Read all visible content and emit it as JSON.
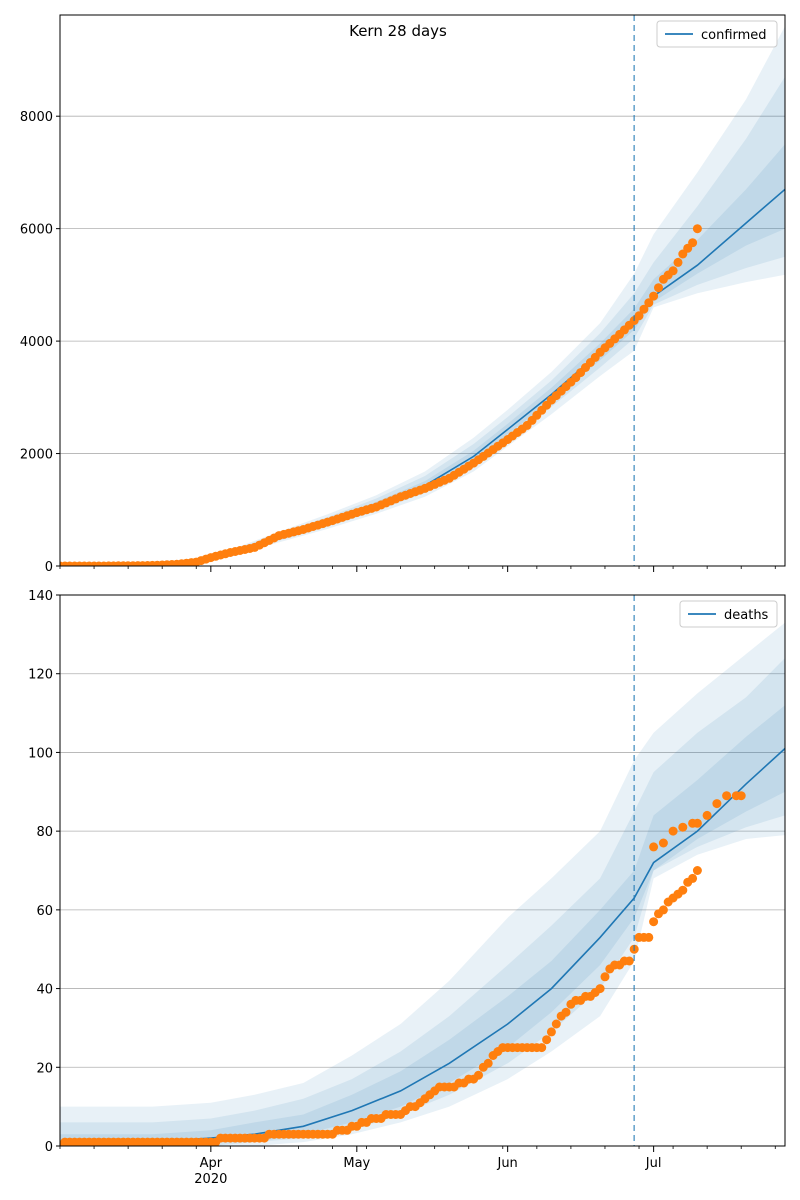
{
  "figure": {
    "title": "Kern 28 days"
  },
  "chart_data": [
    {
      "type": "line",
      "name": "confirmed",
      "title": "Kern 28 days",
      "x_start": "2020-03-01",
      "x_end": "2020-07-28",
      "forecast_start": "2020-06-27",
      "ylim": [
        0,
        9800
      ],
      "yticks": [
        0,
        2000,
        4000,
        6000,
        8000
      ],
      "grid": "y",
      "legend": {
        "position": "top-right",
        "entries": [
          "confirmed"
        ]
      },
      "x_ticks_major": [
        {
          "date": "2020-04-01",
          "label": "Apr",
          "sublabel": "2020"
        },
        {
          "date": "2020-05-01",
          "label": "May",
          "sublabel": ""
        },
        {
          "date": "2020-06-01",
          "label": "Jun",
          "sublabel": ""
        },
        {
          "date": "2020-07-01",
          "label": "Jul",
          "sublabel": ""
        }
      ],
      "x_ticks_labels_visible": false,
      "observed": {
        "dates": [
          "2020-03-01",
          "2020-03-10",
          "2020-03-15",
          "2020-03-20",
          "2020-03-25",
          "2020-03-29",
          "2020-04-01",
          "2020-04-05",
          "2020-04-10",
          "2020-04-15",
          "2020-04-20",
          "2020-04-25",
          "2020-05-01",
          "2020-05-05",
          "2020-05-10",
          "2020-05-15",
          "2020-05-20",
          "2020-05-25",
          "2020-06-01",
          "2020-06-05",
          "2020-06-10",
          "2020-06-15",
          "2020-06-20",
          "2020-06-25",
          "2020-06-28",
          "2020-07-01",
          "2020-07-03",
          "2020-07-05",
          "2020-07-07",
          "2020-07-09",
          "2020-07-10"
        ],
        "values": [
          0,
          0,
          5,
          10,
          30,
          70,
          150,
          240,
          330,
          540,
          650,
          780,
          950,
          1050,
          1230,
          1380,
          1560,
          1830,
          2250,
          2500,
          2950,
          3350,
          3800,
          4200,
          4450,
          4800,
          5100,
          5250,
          5550,
          5750,
          6000
        ]
      },
      "fit": {
        "dates": [
          "2020-03-01",
          "2020-03-20",
          "2020-03-29",
          "2020-04-05",
          "2020-04-15",
          "2020-04-25",
          "2020-05-05",
          "2020-05-15",
          "2020-05-25",
          "2020-06-01",
          "2020-06-10",
          "2020-06-20",
          "2020-06-27",
          "2020-07-01",
          "2020-07-10",
          "2020-07-20",
          "2020-07-28"
        ],
        "values": [
          0,
          5,
          60,
          230,
          510,
          780,
          1080,
          1430,
          1950,
          2430,
          3050,
          3800,
          4380,
          4800,
          5350,
          6100,
          6700
        ]
      },
      "bands": [
        {
          "lower": [
            0,
            0,
            30,
            180,
            420,
            660,
            930,
            1230,
            1680,
            2130,
            2700,
            3380,
            3830,
            4600,
            4850,
            5050,
            5180
          ],
          "upper": [
            10,
            20,
            100,
            290,
            610,
            920,
            1260,
            1680,
            2280,
            2780,
            3450,
            4320,
            5200,
            5900,
            7000,
            8300,
            9600
          ]
        },
        {
          "lower": [
            0,
            0,
            40,
            200,
            450,
            700,
            980,
            1300,
            1780,
            2240,
            2830,
            3530,
            4050,
            4650,
            5000,
            5300,
            5500
          ],
          "upper": [
            5,
            15,
            85,
            270,
            580,
            870,
            1200,
            1600,
            2170,
            2650,
            3300,
            4140,
            4850,
            5400,
            6400,
            7600,
            8700
          ]
        },
        {
          "lower": [
            0,
            2,
            50,
            215,
            480,
            740,
            1030,
            1370,
            1870,
            2340,
            2940,
            3660,
            4200,
            4700,
            5200,
            5700,
            6000
          ],
          "upper": [
            5,
            10,
            70,
            250,
            545,
            825,
            1140,
            1510,
            2050,
            2530,
            3170,
            3960,
            4580,
            5100,
            5800,
            6700,
            7500
          ]
        }
      ]
    },
    {
      "type": "line",
      "name": "deaths",
      "x_start": "2020-03-01",
      "x_end": "2020-07-28",
      "forecast_start": "2020-06-27",
      "ylim": [
        0,
        140
      ],
      "yticks": [
        0,
        20,
        40,
        60,
        80,
        100,
        120,
        140
      ],
      "grid": "y",
      "legend": {
        "position": "top-right",
        "entries": [
          "deaths"
        ]
      },
      "x_ticks_major": [
        {
          "date": "2020-04-01",
          "label": "Apr",
          "sublabel": "2020"
        },
        {
          "date": "2020-05-01",
          "label": "May",
          "sublabel": ""
        },
        {
          "date": "2020-06-01",
          "label": "Jun",
          "sublabel": ""
        },
        {
          "date": "2020-07-01",
          "label": "Jul",
          "sublabel": ""
        }
      ],
      "x_ticks_labels_visible": true,
      "observed": {
        "dates": [
          "2020-03-01",
          "2020-03-03",
          "2020-03-10",
          "2020-03-20",
          "2020-03-25",
          "2020-03-30",
          "2020-04-01",
          "2020-04-05",
          "2020-04-10",
          "2020-04-15",
          "2020-04-20",
          "2020-04-25",
          "2020-04-28",
          "2020-05-01",
          "2020-05-05",
          "2020-05-08",
          "2020-05-10",
          "2020-05-14",
          "2020-05-16",
          "2020-05-18",
          "2020-05-20",
          "2020-05-25",
          "2020-05-28",
          "2020-05-30",
          "2020-06-01",
          "2020-06-04",
          "2020-06-08",
          "2020-06-10",
          "2020-06-14",
          "2020-06-18",
          "2020-06-20",
          "2020-06-22",
          "2020-06-26",
          "2020-06-28",
          "2020-06-30",
          "2020-07-01",
          "2020-07-03",
          "2020-07-05",
          "2020-07-07",
          "2020-07-09",
          "2020-07-10"
        ],
        "values": [
          0,
          1,
          1,
          1,
          1,
          1,
          1,
          2,
          2,
          3,
          3,
          3,
          4,
          5,
          7,
          8,
          8,
          11,
          13,
          15,
          15,
          17,
          21,
          24,
          25,
          25,
          25,
          29,
          36,
          38,
          40,
          45,
          47,
          53,
          53,
          57,
          60,
          63,
          65,
          68,
          70
        ]
      },
      "observed_tail": {
        "dates": [
          "2020-07-01",
          "2020-07-03",
          "2020-07-05",
          "2020-07-07",
          "2020-07-09",
          "2020-07-10",
          "2020-07-12",
          "2020-07-14",
          "2020-07-16",
          "2020-07-18",
          "2020-07-19"
        ],
        "values": [
          76,
          77,
          80,
          81,
          82,
          82,
          84,
          87,
          89,
          89,
          89
        ]
      },
      "fit": {
        "dates": [
          "2020-03-01",
          "2020-03-20",
          "2020-04-01",
          "2020-04-10",
          "2020-04-20",
          "2020-04-30",
          "2020-05-10",
          "2020-05-20",
          "2020-06-01",
          "2020-06-10",
          "2020-06-20",
          "2020-06-27",
          "2020-07-01",
          "2020-07-10",
          "2020-07-20",
          "2020-07-28"
        ],
        "values": [
          1,
          1,
          2,
          3,
          5,
          9,
          14,
          21,
          31,
          40,
          53,
          63,
          72,
          80,
          92,
          101
        ]
      },
      "bands": [
        {
          "lower": [
            0,
            0,
            0,
            0,
            1,
            3,
            6,
            10,
            17,
            24,
            33,
            47,
            68,
            74,
            78,
            79
          ],
          "upper": [
            10,
            10,
            11,
            13,
            16,
            23,
            31,
            42,
            58,
            68,
            80,
            98,
            105,
            115,
            125,
            133
          ]
        },
        {
          "lower": [
            0,
            0,
            0,
            1,
            2,
            4,
            8,
            13,
            21,
            29,
            40,
            53,
            70,
            76,
            81,
            84
          ],
          "upper": [
            6,
            6,
            7,
            9,
            12,
            17,
            24,
            33,
            46,
            56,
            68,
            85,
            95,
            105,
            114,
            124
          ]
        },
        {
          "lower": [
            0,
            0,
            1,
            1,
            3,
            6,
            10,
            16,
            25,
            34,
            46,
            58,
            70,
            78,
            85,
            90
          ],
          "upper": [
            3,
            3,
            4,
            6,
            8,
            13,
            19,
            27,
            38,
            47,
            60,
            70,
            84,
            93,
            104,
            112
          ]
        }
      ]
    }
  ],
  "colors": {
    "line": "#1f77b4",
    "observed": "#ff7f0e",
    "band": "#1f77b4",
    "forecast_line": "#1f77b4",
    "grid": "#b0b0b0"
  }
}
